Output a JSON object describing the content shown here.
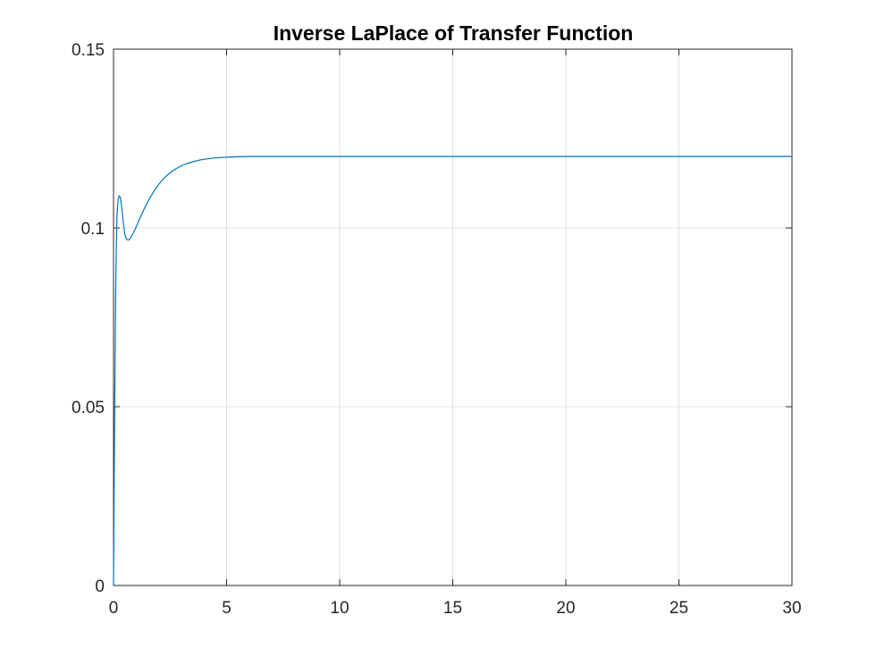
{
  "chart_data": {
    "type": "line",
    "title": "Inverse LaPlace of Transfer Function",
    "xlabel": "",
    "ylabel": "",
    "xlim": [
      0,
      30
    ],
    "ylim": [
      0,
      0.15
    ],
    "x_ticks": [
      0,
      5,
      10,
      15,
      20,
      25,
      30
    ],
    "x_tick_labels": [
      "0",
      "5",
      "10",
      "15",
      "20",
      "25",
      "30"
    ],
    "y_ticks": [
      0,
      0.05,
      0.1,
      0.15
    ],
    "y_tick_labels": [
      "0",
      "0.05",
      "0.1",
      "0.15"
    ],
    "grid": true,
    "series": [
      {
        "color": "#0072bd",
        "x": [
          0,
          0.05,
          0.1,
          0.15,
          0.2,
          0.25,
          0.3,
          0.35,
          0.4,
          0.45,
          0.5,
          0.55,
          0.6,
          0.65,
          0.7,
          0.75,
          0.8,
          0.9,
          1.0,
          1.1,
          1.2,
          1.4,
          1.6,
          1.8,
          2.0,
          2.2,
          2.4,
          2.6,
          2.8,
          3.0,
          3.25,
          3.5,
          3.75,
          4.0,
          4.5,
          5.0,
          5.5,
          6.0,
          7.0,
          8.0,
          10.0,
          15.0,
          20.0,
          25.0,
          30.0
        ],
        "y": [
          0,
          0.048,
          0.085,
          0.103,
          0.108,
          0.109,
          0.1085,
          0.1065,
          0.1035,
          0.1005,
          0.0983,
          0.0972,
          0.0967,
          0.0966,
          0.0968,
          0.0972,
          0.0977,
          0.0989,
          0.1003,
          0.1018,
          0.1032,
          0.1059,
          0.1083,
          0.1104,
          0.1122,
          0.1137,
          0.1149,
          0.1159,
          0.1167,
          0.1174,
          0.118,
          0.1185,
          0.1189,
          0.1192,
          0.1196,
          0.1198,
          0.1199,
          0.12,
          0.12,
          0.12,
          0.12,
          0.12,
          0.12,
          0.12,
          0.12
        ]
      }
    ]
  }
}
